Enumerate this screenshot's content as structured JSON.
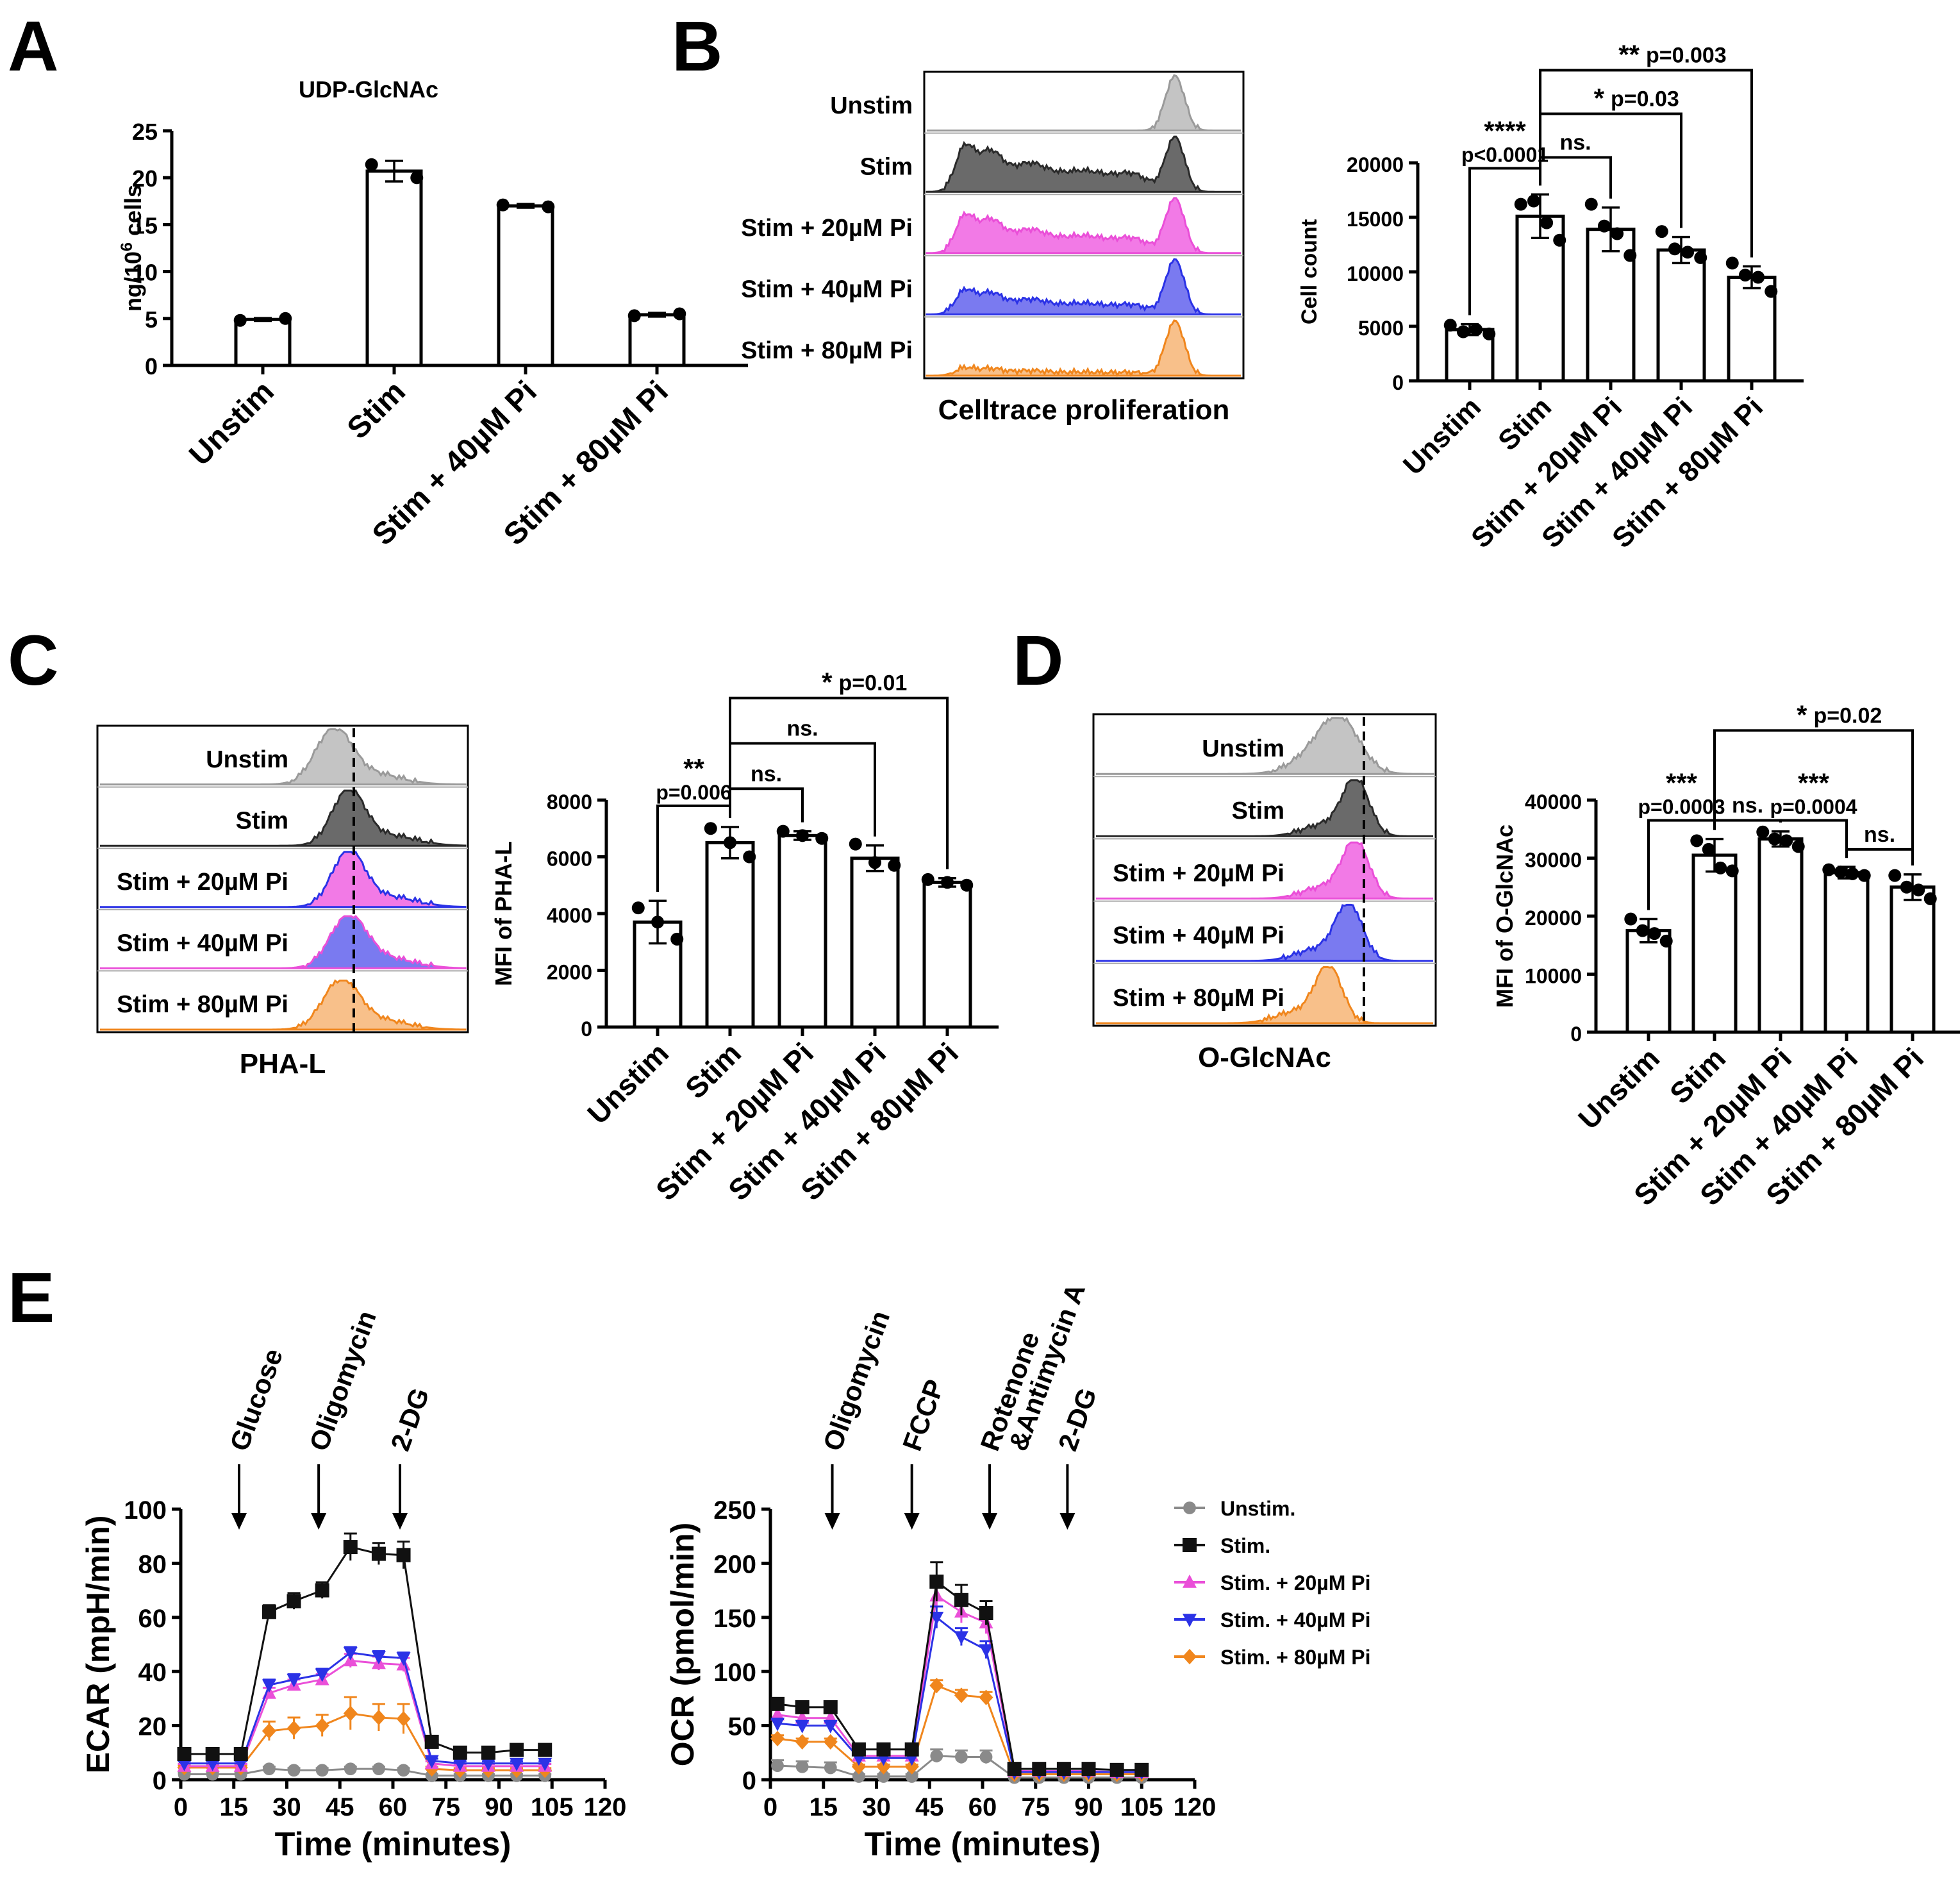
{
  "panel_letters": [
    "A",
    "B",
    "C",
    "D",
    "E"
  ],
  "colors": {
    "unstim": "#8a8a8a",
    "stim": "#111111",
    "pi20": "#ea4fd8",
    "pi40": "#2b32e6",
    "pi80": "#f0861d",
    "hist_unstim": "#c4c4c4",
    "hist_stim": "#6a6a6a",
    "hist_pi20": "#f27ae6",
    "hist_pi40": "#7a7af0",
    "hist_pi80": "#f8c08a"
  },
  "histograms": {
    "B": {
      "rows": [
        "Unstim",
        "Stim",
        "Stim + 20µM Pi",
        "Stim + 40µM Pi",
        "Stim + 80µM Pi"
      ],
      "xlabel": "Celltrace proliferation"
    },
    "C": {
      "rows": [
        "Unstim",
        "Stim",
        "Stim + 20µM Pi",
        "Stim + 40µM Pi",
        "Stim + 80µM Pi"
      ],
      "xlabel": "PHA-L"
    },
    "D": {
      "rows": [
        "Unstim",
        "Stim",
        "Stim + 20µM Pi",
        "Stim + 40µM Pi",
        "Stim + 80µM Pi"
      ],
      "xlabel": "O-GlcNAc"
    }
  },
  "chart_data": [
    {
      "id": "A",
      "type": "bar",
      "title": "UDP-GlcNAc",
      "ylabel_main": "ng/10",
      "ylabel_sup": "6",
      "ylabel_tail": " cells",
      "categories": [
        "Unstim",
        "Stim",
        "Stim + 40µM Pi",
        "Stim + 80µM Pi"
      ],
      "values": [
        4.9,
        20.7,
        17.0,
        5.4
      ],
      "errors": [
        0.15,
        1.1,
        0.2,
        0.2
      ],
      "points": [
        [
          4.8,
          5.0
        ],
        [
          21.4,
          20.0
        ],
        [
          17.1,
          16.9
        ],
        [
          5.3,
          5.5
        ]
      ],
      "ylim": [
        0,
        25
      ],
      "yticks": [
        0,
        5,
        10,
        15,
        20,
        25
      ],
      "comparisons": []
    },
    {
      "id": "B",
      "type": "bar",
      "title": "",
      "ylabel": "Cell count",
      "categories": [
        "Unstim",
        "Stim",
        "Stim + 20µM Pi",
        "Stim + 40µM Pi",
        "Stim + 80µM Pi"
      ],
      "values": [
        4700,
        15100,
        13900,
        12000,
        9500
      ],
      "errors": [
        500,
        2000,
        2000,
        1200,
        1000
      ],
      "points": [
        [
          5100,
          4500,
          4700,
          4300
        ],
        [
          16200,
          16500,
          14500,
          12900
        ],
        [
          16200,
          14200,
          13500,
          11500
        ],
        [
          13700,
          12100,
          11800,
          11300
        ],
        [
          10800,
          9700,
          9500,
          8200
        ]
      ],
      "ylim": [
        0,
        20000
      ],
      "yticks": [
        0,
        5000,
        10000,
        15000,
        20000
      ],
      "comparisons": [
        {
          "from": 0,
          "to": 1,
          "stars": "****",
          "p": "p<0.0001",
          "at": 19500
        },
        {
          "from": 1,
          "to": 2,
          "stars": "",
          "p": "ns.",
          "at": 20500
        },
        {
          "from": 1,
          "to": 3,
          "stars": "*",
          "p": "p=0.03",
          "at": 24500
        },
        {
          "from": 1,
          "to": 4,
          "stars": "**",
          "p": "p=0.003",
          "at": 28500
        }
      ]
    },
    {
      "id": "C",
      "type": "bar",
      "title": "",
      "ylabel": "MFI of PHA-L",
      "categories": [
        "Unstim",
        "Stim",
        "Stim + 20µM Pi",
        "Stim + 40µM Pi",
        "Stim + 80µM Pi"
      ],
      "values": [
        3700,
        6500,
        6750,
        5950,
        5100
      ],
      "errors": [
        750,
        550,
        150,
        450,
        150
      ],
      "points": [
        [
          4200,
          3700,
          3100
        ],
        [
          7000,
          6500,
          6000
        ],
        [
          6900,
          6750,
          6650
        ],
        [
          6450,
          5800,
          5700
        ],
        [
          5200,
          5100,
          5000
        ]
      ],
      "ylim": [
        0,
        8000
      ],
      "yticks": [
        0,
        2000,
        4000,
        6000,
        8000
      ],
      "comparisons": [
        {
          "from": 0,
          "to": 1,
          "stars": "**",
          "p": "p=0.006",
          "at": 7800
        },
        {
          "from": 1,
          "to": 2,
          "stars": "",
          "p": "ns.",
          "at": 8400
        },
        {
          "from": 1,
          "to": 3,
          "stars": "",
          "p": "ns.",
          "at": 10000
        },
        {
          "from": 1,
          "to": 4,
          "stars": "*",
          "p": "p=0.01",
          "at": 11600
        }
      ]
    },
    {
      "id": "D",
      "type": "bar",
      "title": "",
      "ylabel": "MFI of O-GlcNAc",
      "categories": [
        "Unstim",
        "Stim",
        "Stim + 20µM Pi",
        "Stim + 40µM Pi",
        "Stim + 80µM Pi"
      ],
      "values": [
        17500,
        30500,
        33300,
        27500,
        25000
      ],
      "errors": [
        2000,
        2800,
        1300,
        1000,
        2200
      ],
      "points": [
        [
          19500,
          17500,
          17000,
          15700
        ],
        [
          33000,
          31500,
          28300,
          27800
        ],
        [
          34500,
          33300,
          33000,
          32000
        ],
        [
          28000,
          27600,
          27300,
          27000
        ],
        [
          27000,
          25000,
          24500,
          23000
        ]
      ],
      "ylim": [
        0,
        40000
      ],
      "yticks": [
        0,
        10000,
        20000,
        30000,
        40000
      ],
      "comparisons": [
        {
          "from": 0,
          "to": 1,
          "stars": "***",
          "p": "p=0.0003",
          "at": 36500
        },
        {
          "from": 1,
          "to": 2,
          "stars": "",
          "p": "ns.",
          "at": 36500
        },
        {
          "from": 2,
          "to": 3,
          "stars": "***",
          "p": "p=0.0004",
          "at": 36500
        },
        {
          "from": 3,
          "to": 4,
          "stars": "",
          "p": "ns.",
          "at": 31500
        },
        {
          "from": 1,
          "to": 4,
          "stars": "*",
          "p": "p=0.02",
          "at": 52000
        }
      ]
    },
    {
      "id": "E1",
      "type": "line",
      "xlabel": "Time (minutes)",
      "ylabel": "ECAR (mpH/min)",
      "xlim": [
        0,
        120
      ],
      "xticks": [
        0,
        15,
        30,
        45,
        60,
        75,
        90,
        105,
        120
      ],
      "ylim": [
        0,
        100
      ],
      "yticks": [
        0,
        20,
        40,
        60,
        80,
        100
      ],
      "x": [
        1,
        9,
        17,
        25,
        32,
        40,
        48,
        56,
        63,
        71,
        79,
        87,
        95,
        103
      ],
      "series": [
        {
          "name": "Unstim.",
          "color": "#8a8a8a",
          "marker": "circle",
          "values": [
            2,
            2,
            2,
            4,
            3.5,
            3.5,
            4,
            4,
            3.5,
            1.5,
            1.5,
            1.5,
            1.5,
            1.5
          ],
          "errors": [
            0.6,
            0.6,
            0.6,
            0.8,
            0.8,
            0.8,
            0.8,
            0.8,
            0.8,
            0.5,
            0.5,
            0.5,
            0.5,
            0.5
          ]
        },
        {
          "name": "Stim.",
          "color": "#111111",
          "marker": "square",
          "values": [
            9.5,
            9.5,
            9.5,
            62,
            66,
            70,
            86,
            83.5,
            83,
            14,
            10,
            10,
            11,
            11
          ],
          "errors": [
            1,
            1,
            1,
            2.5,
            3,
            3,
            5,
            4,
            5,
            1.2,
            1,
            1,
            1.2,
            1.2
          ]
        },
        {
          "name": "Stim. + 20µM Pi",
          "color": "#ea4fd8",
          "marker": "triangle-up",
          "values": [
            5,
            5,
            5,
            32,
            35,
            37,
            44,
            43,
            42.5,
            6,
            5,
            5,
            5,
            5
          ],
          "errors": [
            0.8,
            0.8,
            0.8,
            2,
            2,
            2,
            2.5,
            2.5,
            2.5,
            0.8,
            0.8,
            0.8,
            0.8,
            0.8
          ]
        },
        {
          "name": "Stim. + 40µM Pi",
          "color": "#2b32e6",
          "marker": "triangle-down",
          "values": [
            6,
            6,
            6,
            35,
            37,
            39,
            47,
            45.5,
            45,
            7,
            6,
            6,
            6,
            6
          ],
          "errors": [
            0.8,
            0.8,
            0.8,
            2,
            2,
            2,
            2,
            2,
            2,
            0.8,
            0.8,
            0.8,
            0.8,
            0.8
          ]
        },
        {
          "name": "Stim. + 80µM Pi",
          "color": "#f0861d",
          "marker": "diamond",
          "values": [
            4.5,
            4.5,
            4.5,
            18,
            19,
            20,
            24.5,
            23,
            22.5,
            4,
            3.5,
            3.5,
            3.5,
            3.5
          ],
          "errors": [
            0.8,
            0.8,
            0.8,
            3.5,
            4,
            4,
            6,
            5,
            5.5,
            0.8,
            0.8,
            0.8,
            0.8,
            0.8
          ]
        }
      ],
      "annotations": [
        {
          "label": "Glucose",
          "x": 16.5
        },
        {
          "label": "Oligomycin",
          "x": 39
        },
        {
          "label": "2-DG",
          "x": 62
        }
      ]
    },
    {
      "id": "E2",
      "type": "line",
      "xlabel": "Time (minutes)",
      "ylabel": "OCR (pmol/min)",
      "xlim": [
        0,
        120
      ],
      "xticks": [
        0,
        15,
        30,
        45,
        60,
        75,
        90,
        105,
        120
      ],
      "ylim": [
        0,
        250
      ],
      "yticks": [
        0,
        50,
        100,
        150,
        200,
        250
      ],
      "x": [
        2,
        9,
        17,
        25,
        32,
        40,
        47,
        54,
        61,
        69,
        76,
        83,
        90,
        98,
        105
      ],
      "series": [
        {
          "name": "Unstim.",
          "color": "#8a8a8a",
          "marker": "circle",
          "values": [
            13,
            12,
            11,
            3,
            3,
            3,
            22,
            21,
            21,
            2,
            2,
            2,
            2,
            2,
            2
          ],
          "errors": [
            5,
            5,
            5,
            2,
            2,
            2,
            6,
            6,
            6,
            1,
            1,
            1,
            1,
            1,
            1
          ]
        },
        {
          "name": "Stim.",
          "color": "#111111",
          "marker": "square",
          "values": [
            70,
            67,
            67,
            28,
            28,
            28,
            183,
            166,
            154,
            10,
            10,
            10,
            10,
            9,
            9
          ],
          "errors": [
            5,
            5,
            5,
            5,
            5,
            5,
            18,
            14,
            11,
            2,
            2,
            2,
            2,
            2,
            2
          ]
        },
        {
          "name": "Stim. + 20µM Pi",
          "color": "#ea4fd8",
          "marker": "triangle-up",
          "values": [
            60,
            57,
            57,
            22,
            22,
            22,
            170,
            155,
            145,
            8,
            8,
            8,
            8,
            7,
            7
          ],
          "errors": [
            5,
            5,
            5,
            3,
            3,
            3,
            12,
            10,
            10,
            2,
            2,
            2,
            2,
            2,
            2
          ]
        },
        {
          "name": "Stim. + 40µM Pi",
          "color": "#2b32e6",
          "marker": "triangle-down",
          "values": [
            52,
            50,
            50,
            20,
            20,
            20,
            150,
            132,
            120,
            7,
            7,
            7,
            7,
            7,
            7
          ],
          "errors": [
            4,
            4,
            4,
            3,
            3,
            3,
            10,
            8,
            8,
            2,
            2,
            2,
            2,
            2,
            2
          ]
        },
        {
          "name": "Stim. + 80µM Pi",
          "color": "#f0861d",
          "marker": "diamond",
          "values": [
            38,
            35,
            35,
            12,
            12,
            12,
            87,
            78,
            76,
            5,
            5,
            5,
            5,
            5,
            5
          ],
          "errors": [
            3,
            3,
            3,
            2,
            2,
            2,
            5,
            5,
            5,
            1,
            1,
            1,
            1,
            1,
            1
          ]
        }
      ],
      "annotations": [
        {
          "label": "Oligomycin",
          "x": 17.5
        },
        {
          "label": "FCCP",
          "x": 40
        },
        {
          "label": "Rotenone",
          "x": 62
        },
        {
          "label": "&Antimycin A",
          "x": 62,
          "second_line": true
        },
        {
          "label": "2-DG",
          "x": 84
        }
      ],
      "legend": [
        "Unstim.",
        "Stim.",
        "Stim. + 20µM Pi",
        "Stim. + 40µM Pi",
        "Stim. + 80µM Pi"
      ]
    }
  ]
}
